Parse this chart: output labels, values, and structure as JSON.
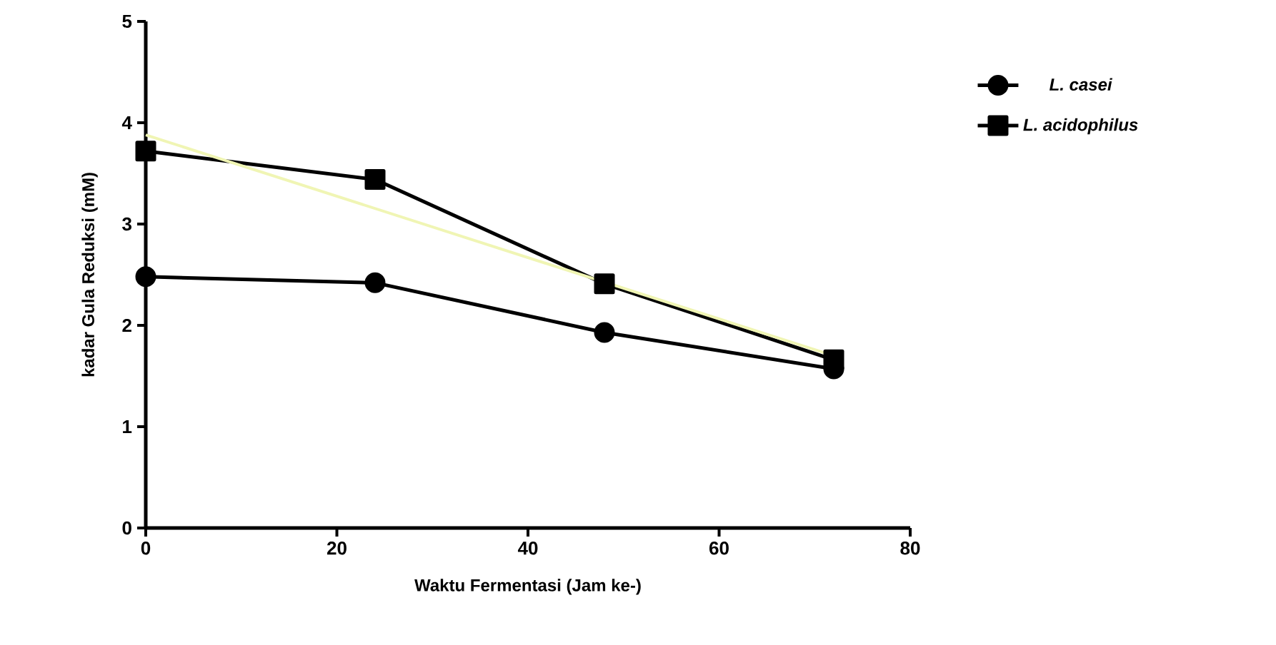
{
  "chart_data": {
    "type": "line",
    "xlabel": "Waktu Fermentasi (Jam ke-)",
    "ylabel": "kadar Gula Reduksi (mM)",
    "x": [
      0,
      24,
      48,
      72
    ],
    "xlim": [
      0,
      80
    ],
    "xticks": [
      0,
      20,
      40,
      60,
      80
    ],
    "ylim": [
      0,
      5
    ],
    "yticks": [
      0,
      1,
      2,
      3,
      4,
      5
    ],
    "legend": "right",
    "grid": false,
    "line_style": "solid",
    "series": [
      {
        "name": "L. casei",
        "color": "#000000",
        "marker": "circle",
        "values": [
          2.48,
          2.42,
          1.93,
          1.57
        ]
      },
      {
        "name": "L. acidophilus",
        "color": "#000000",
        "marker": "square",
        "values": [
          3.72,
          3.44,
          2.41,
          1.66
        ]
      },
      {
        "color": "#f0f5b4",
        "marker": "none",
        "x": [
          0,
          72
        ],
        "values": [
          3.88,
          1.7
        ]
      }
    ]
  }
}
